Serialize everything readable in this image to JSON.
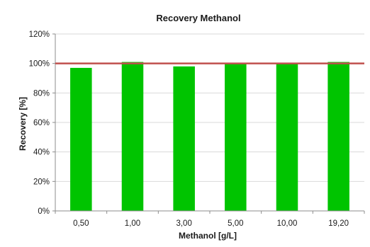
{
  "chart_data": {
    "type": "bar",
    "title": "Recovery Methanol",
    "xlabel": "Methanol [g/L]",
    "ylabel": "Recovery [%]",
    "categories": [
      "0,50",
      "1,00",
      "3,00",
      "5,00",
      "10,00",
      "19,20"
    ],
    "values": [
      97,
      101,
      98,
      100,
      100,
      101
    ],
    "ylim": [
      0,
      120
    ],
    "yticks": [
      0,
      20,
      40,
      60,
      80,
      100,
      120
    ],
    "ytick_labels": [
      "0%",
      "20%",
      "40%",
      "60%",
      "80%",
      "100%",
      "120%"
    ],
    "reference_line": 100,
    "grid": true,
    "legend": "none",
    "colors": {
      "bar": "#00c400",
      "reference_line": "#c0504d",
      "grid": "#d9d9d9",
      "axis": "#8c8c8c"
    }
  }
}
